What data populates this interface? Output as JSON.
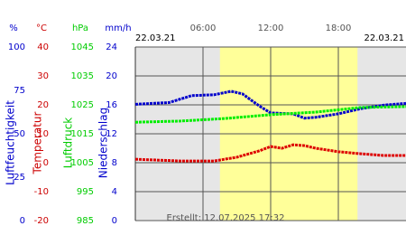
{
  "chart_data": {
    "type": "line",
    "date_left": "22.03.21",
    "date_right": "22.03.21",
    "footer": "Erstellt: 12.07.2025 17:32",
    "xlim": [
      0,
      24
    ],
    "xticks": [
      {
        "value": 6,
        "label": "06:00"
      },
      {
        "value": 12,
        "label": "12:00"
      },
      {
        "value": 18,
        "label": "18:00"
      }
    ],
    "daylight": [
      7.5,
      19.7
    ],
    "grid": true,
    "axes": [
      {
        "label": "Luftfeuchtigkeit",
        "unit": "%",
        "color": "#0000cc",
        "ylim": [
          0,
          100
        ],
        "yticks": [
          0,
          25,
          50,
          75,
          100
        ]
      },
      {
        "label": "Temperatur",
        "unit": "°C",
        "color": "#cc0000",
        "ylim": [
          -20,
          40
        ],
        "yticks": [
          -20,
          -10,
          0,
          10,
          20,
          30,
          40
        ]
      },
      {
        "label": "Luftdruck",
        "unit": "hPa",
        "color": "#00cc00",
        "ylim": [
          985,
          1045
        ],
        "yticks": [
          985,
          995,
          1005,
          1015,
          1025,
          1035,
          1045
        ]
      },
      {
        "label": "Niederschlag",
        "unit": "mm/h",
        "color": "#0000cc",
        "ylim": [
          0,
          24
        ],
        "yticks": [
          0,
          4,
          8,
          12,
          16,
          20,
          24
        ]
      }
    ],
    "series": [
      {
        "axis": 0,
        "color": "#0000cc",
        "x": [
          0,
          3,
          5,
          7,
          8.5,
          9.5,
          11,
          12,
          14,
          15,
          16,
          18,
          20,
          22,
          24
        ],
        "values": [
          67,
          68,
          72,
          72.5,
          74.5,
          73,
          66,
          62,
          61.5,
          59,
          59.5,
          61.5,
          64.5,
          66.5,
          67.5
        ]
      },
      {
        "axis": 2,
        "color": "#00ee00",
        "x": [
          0,
          4,
          8,
          12,
          16,
          20,
          24
        ],
        "values": [
          1019,
          1019.4,
          1020.3,
          1021.6,
          1022.5,
          1024.1,
          1024.4
        ]
      },
      {
        "axis": 1,
        "color": "#dd0000",
        "x": [
          0,
          4,
          7,
          9,
          11,
          12,
          13,
          14,
          15,
          16,
          18,
          20,
          22,
          24
        ],
        "values": [
          1.2,
          0.6,
          0.6,
          1.9,
          4.1,
          5.6,
          5,
          6.2,
          5.9,
          5,
          3.8,
          3.1,
          2.5,
          2.5
        ]
      }
    ]
  }
}
